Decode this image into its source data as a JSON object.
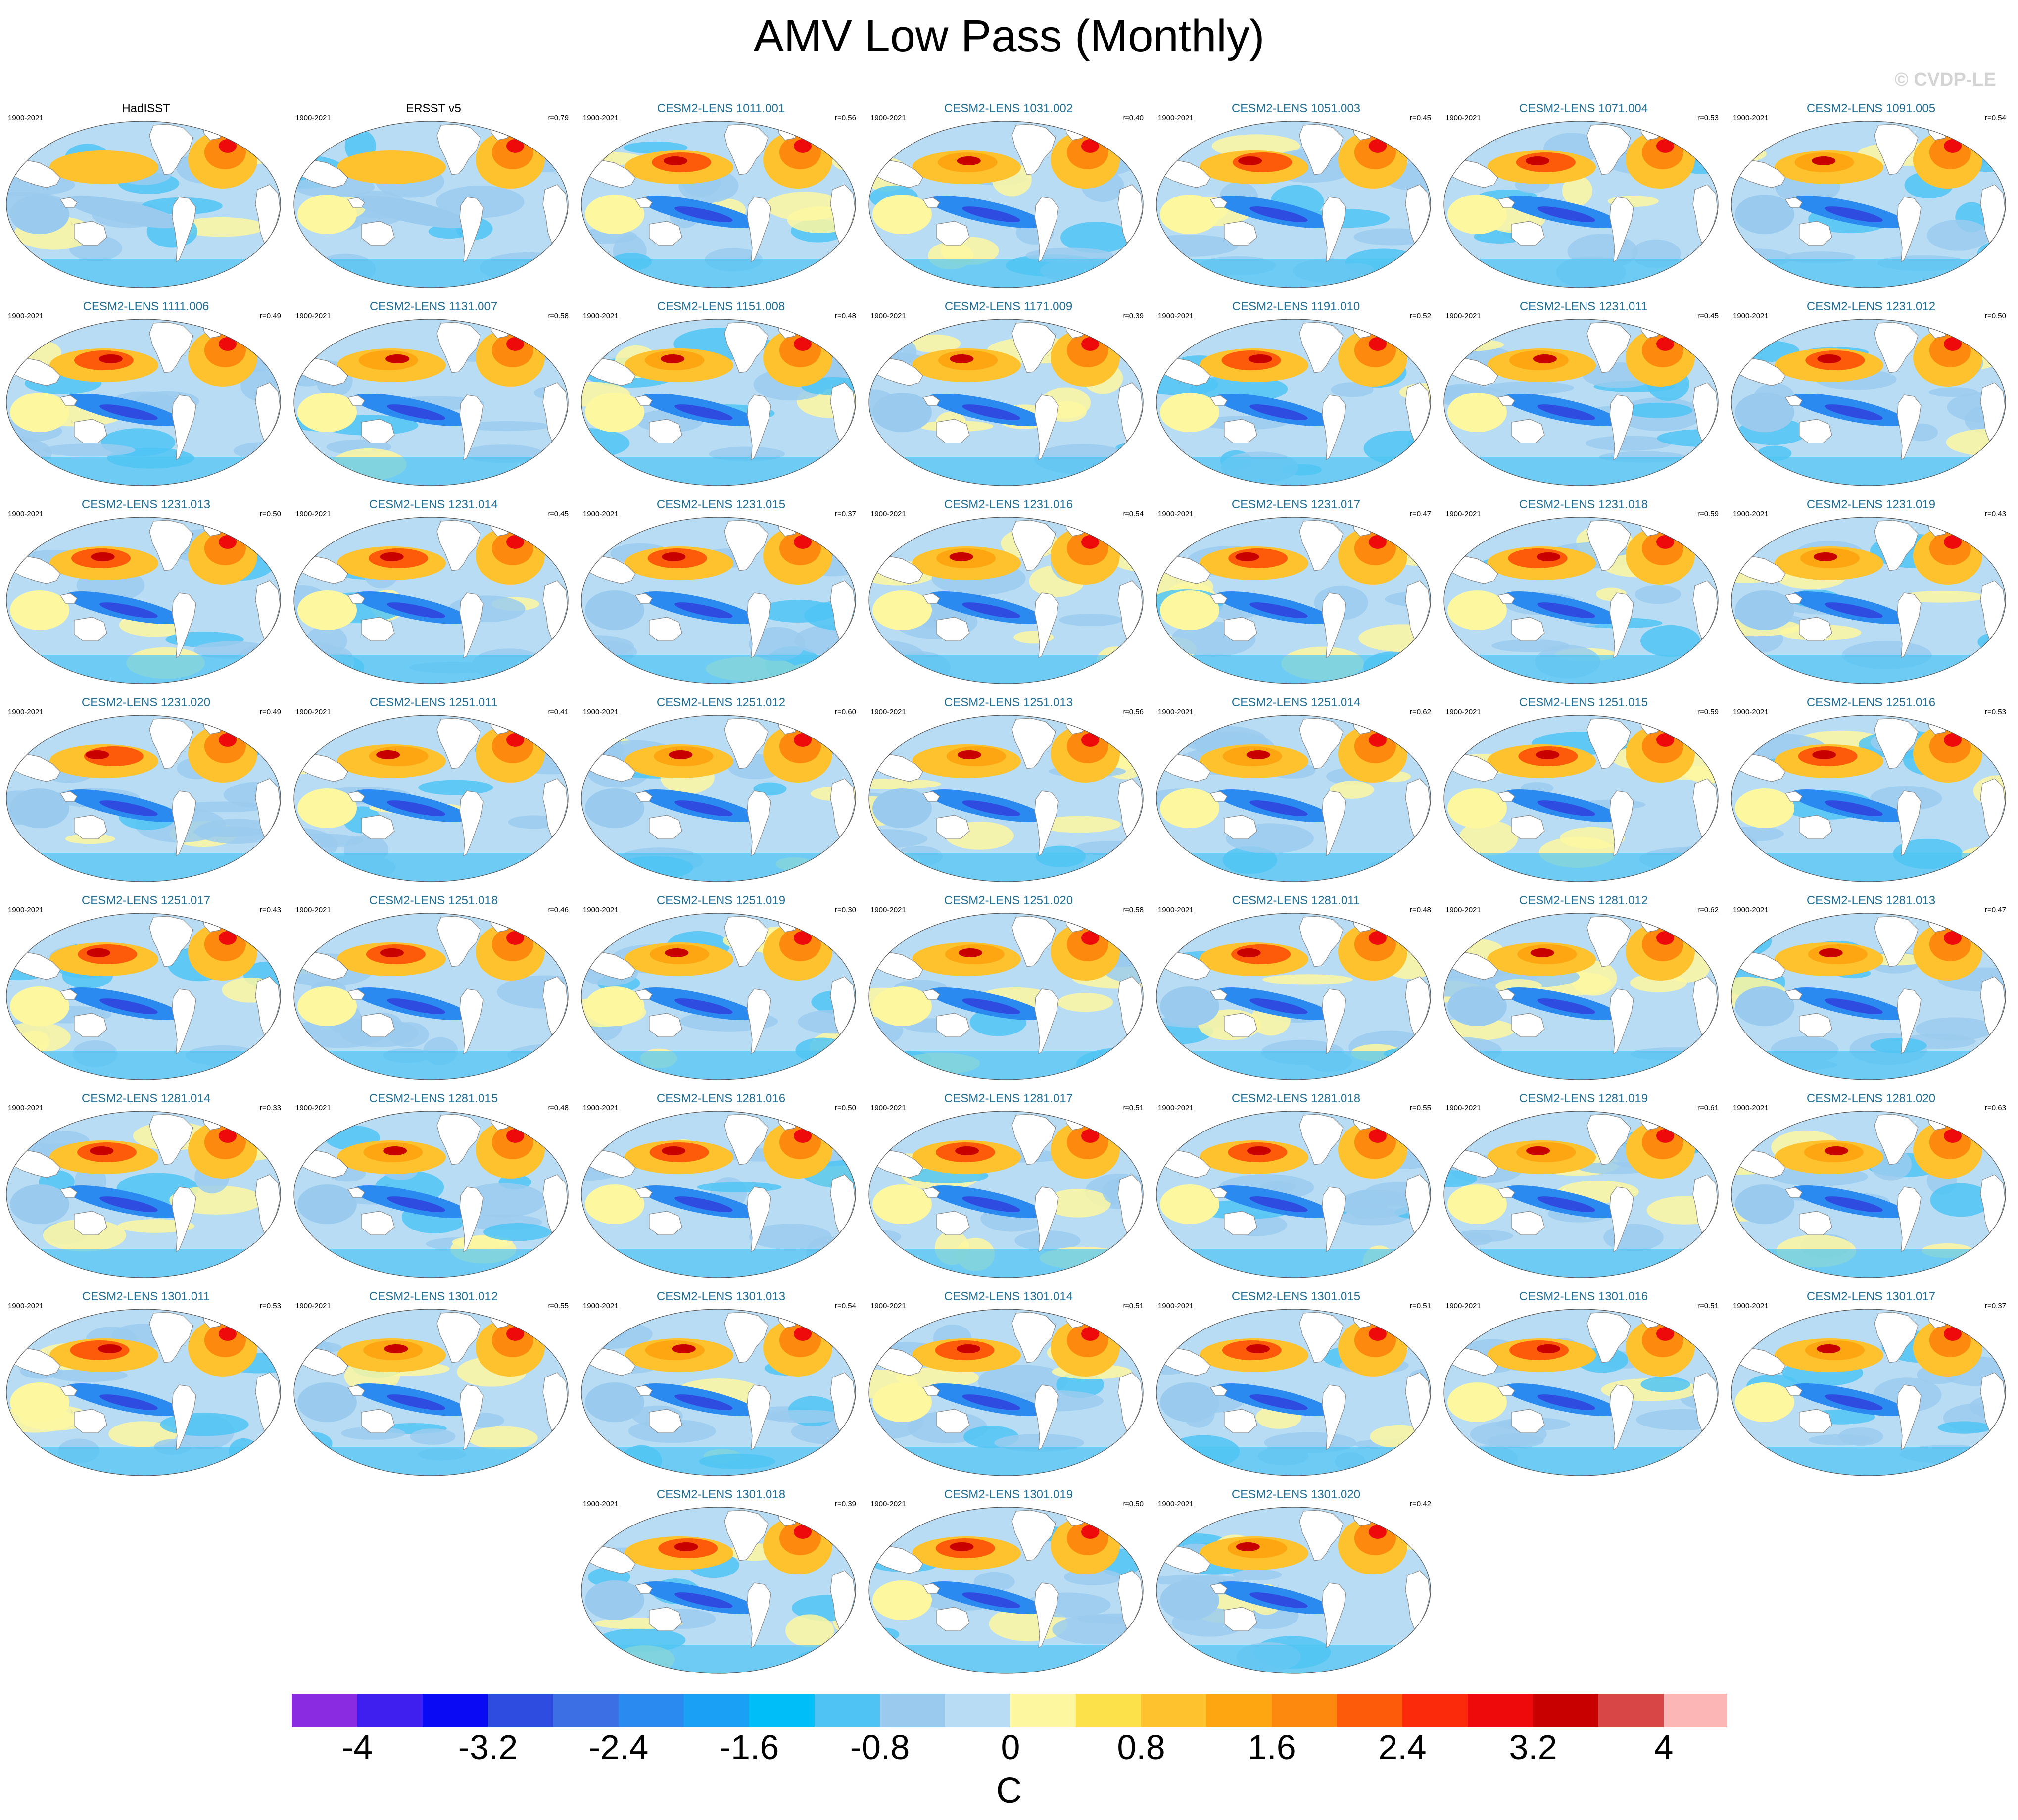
{
  "title": "AMV Low Pass (Monthly)",
  "watermark": "© CVDP-LE",
  "period": "1900-2021",
  "panels": [
    {
      "name": "HadISST",
      "r": "",
      "obs": true
    },
    {
      "name": "ERSST v5",
      "r": "r=0.79",
      "obs": true
    },
    {
      "name": "CESM2-LENS 1011.001",
      "r": "r=0.56"
    },
    {
      "name": "CESM2-LENS 1031.002",
      "r": "r=0.40"
    },
    {
      "name": "CESM2-LENS 1051.003",
      "r": "r=0.45"
    },
    {
      "name": "CESM2-LENS 1071.004",
      "r": "r=0.53"
    },
    {
      "name": "CESM2-LENS 1091.005",
      "r": "r=0.54"
    },
    {
      "name": "CESM2-LENS 1111.006",
      "r": "r=0.49"
    },
    {
      "name": "CESM2-LENS 1131.007",
      "r": "r=0.58"
    },
    {
      "name": "CESM2-LENS 1151.008",
      "r": "r=0.48"
    },
    {
      "name": "CESM2-LENS 1171.009",
      "r": "r=0.39"
    },
    {
      "name": "CESM2-LENS 1191.010",
      "r": "r=0.52"
    },
    {
      "name": "CESM2-LENS 1231.011",
      "r": "r=0.45"
    },
    {
      "name": "CESM2-LENS 1231.012",
      "r": "r=0.50"
    },
    {
      "name": "CESM2-LENS 1231.013",
      "r": "r=0.50"
    },
    {
      "name": "CESM2-LENS 1231.014",
      "r": "r=0.45"
    },
    {
      "name": "CESM2-LENS 1231.015",
      "r": "r=0.37"
    },
    {
      "name": "CESM2-LENS 1231.016",
      "r": "r=0.54"
    },
    {
      "name": "CESM2-LENS 1231.017",
      "r": "r=0.47"
    },
    {
      "name": "CESM2-LENS 1231.018",
      "r": "r=0.59"
    },
    {
      "name": "CESM2-LENS 1231.019",
      "r": "r=0.43"
    },
    {
      "name": "CESM2-LENS 1231.020",
      "r": "r=0.49"
    },
    {
      "name": "CESM2-LENS 1251.011",
      "r": "r=0.41"
    },
    {
      "name": "CESM2-LENS 1251.012",
      "r": "r=0.60"
    },
    {
      "name": "CESM2-LENS 1251.013",
      "r": "r=0.56"
    },
    {
      "name": "CESM2-LENS 1251.014",
      "r": "r=0.62"
    },
    {
      "name": "CESM2-LENS 1251.015",
      "r": "r=0.59"
    },
    {
      "name": "CESM2-LENS 1251.016",
      "r": "r=0.53"
    },
    {
      "name": "CESM2-LENS 1251.017",
      "r": "r=0.43"
    },
    {
      "name": "CESM2-LENS 1251.018",
      "r": "r=0.46"
    },
    {
      "name": "CESM2-LENS 1251.019",
      "r": "r=0.30"
    },
    {
      "name": "CESM2-LENS 1251.020",
      "r": "r=0.58"
    },
    {
      "name": "CESM2-LENS 1281.011",
      "r": "r=0.48"
    },
    {
      "name": "CESM2-LENS 1281.012",
      "r": "r=0.62"
    },
    {
      "name": "CESM2-LENS 1281.013",
      "r": "r=0.47"
    },
    {
      "name": "CESM2-LENS 1281.014",
      "r": "r=0.33"
    },
    {
      "name": "CESM2-LENS 1281.015",
      "r": "r=0.48"
    },
    {
      "name": "CESM2-LENS 1281.016",
      "r": "r=0.50"
    },
    {
      "name": "CESM2-LENS 1281.017",
      "r": "r=0.51"
    },
    {
      "name": "CESM2-LENS 1281.018",
      "r": "r=0.55"
    },
    {
      "name": "CESM2-LENS 1281.019",
      "r": "r=0.61"
    },
    {
      "name": "CESM2-LENS 1281.020",
      "r": "r=0.63"
    },
    {
      "name": "CESM2-LENS 1301.011",
      "r": "r=0.53"
    },
    {
      "name": "CESM2-LENS 1301.012",
      "r": "r=0.55"
    },
    {
      "name": "CESM2-LENS 1301.013",
      "r": "r=0.54"
    },
    {
      "name": "CESM2-LENS 1301.014",
      "r": "r=0.51"
    },
    {
      "name": "CESM2-LENS 1301.015",
      "r": "r=0.51"
    },
    {
      "name": "CESM2-LENS 1301.016",
      "r": "r=0.51"
    },
    {
      "name": "CESM2-LENS 1301.017",
      "r": "r=0.37"
    },
    {
      "name": "CESM2-LENS 1301.018",
      "r": "r=0.39"
    },
    {
      "name": "CESM2-LENS 1301.019",
      "r": "r=0.50"
    },
    {
      "name": "CESM2-LENS 1301.020",
      "r": "r=0.42"
    }
  ],
  "colorbar": {
    "unit": "C",
    "tick_labels": [
      "-4",
      "-3.2",
      "-2.4",
      "-1.6",
      "-0.8",
      "0",
      "0.8",
      "1.6",
      "2.4",
      "3.2",
      "4"
    ],
    "colors": [
      "#8a2be2",
      "#3f1ef0",
      "#0a0af5",
      "#2f4ce0",
      "#3c6fe3",
      "#2a8af0",
      "#1aa0f5",
      "#00bef8",
      "#4fc4f4",
      "#9acbef",
      "#b8dcf3",
      "#fdf7a0",
      "#fde14a",
      "#fdc22e",
      "#fda612",
      "#fd8a0e",
      "#fd5a0a",
      "#fa2a0a",
      "#ee0a0a",
      "#c80000",
      "#d94646",
      "#fdb6b6"
    ]
  },
  "chart_data": {
    "type": "heatmap",
    "title": "AMV Low Pass (Monthly)",
    "unit": "C",
    "period": "1900-2021",
    "levels": [
      -4.4,
      -4.0,
      -3.6,
      -3.2,
      -2.8,
      -2.4,
      -2.0,
      -1.6,
      -1.2,
      -0.8,
      -0.4,
      0,
      0.4,
      0.8,
      1.2,
      1.6,
      2.0,
      2.4,
      2.8,
      3.2,
      3.6,
      4.0,
      4.4
    ],
    "panels": 52
  }
}
